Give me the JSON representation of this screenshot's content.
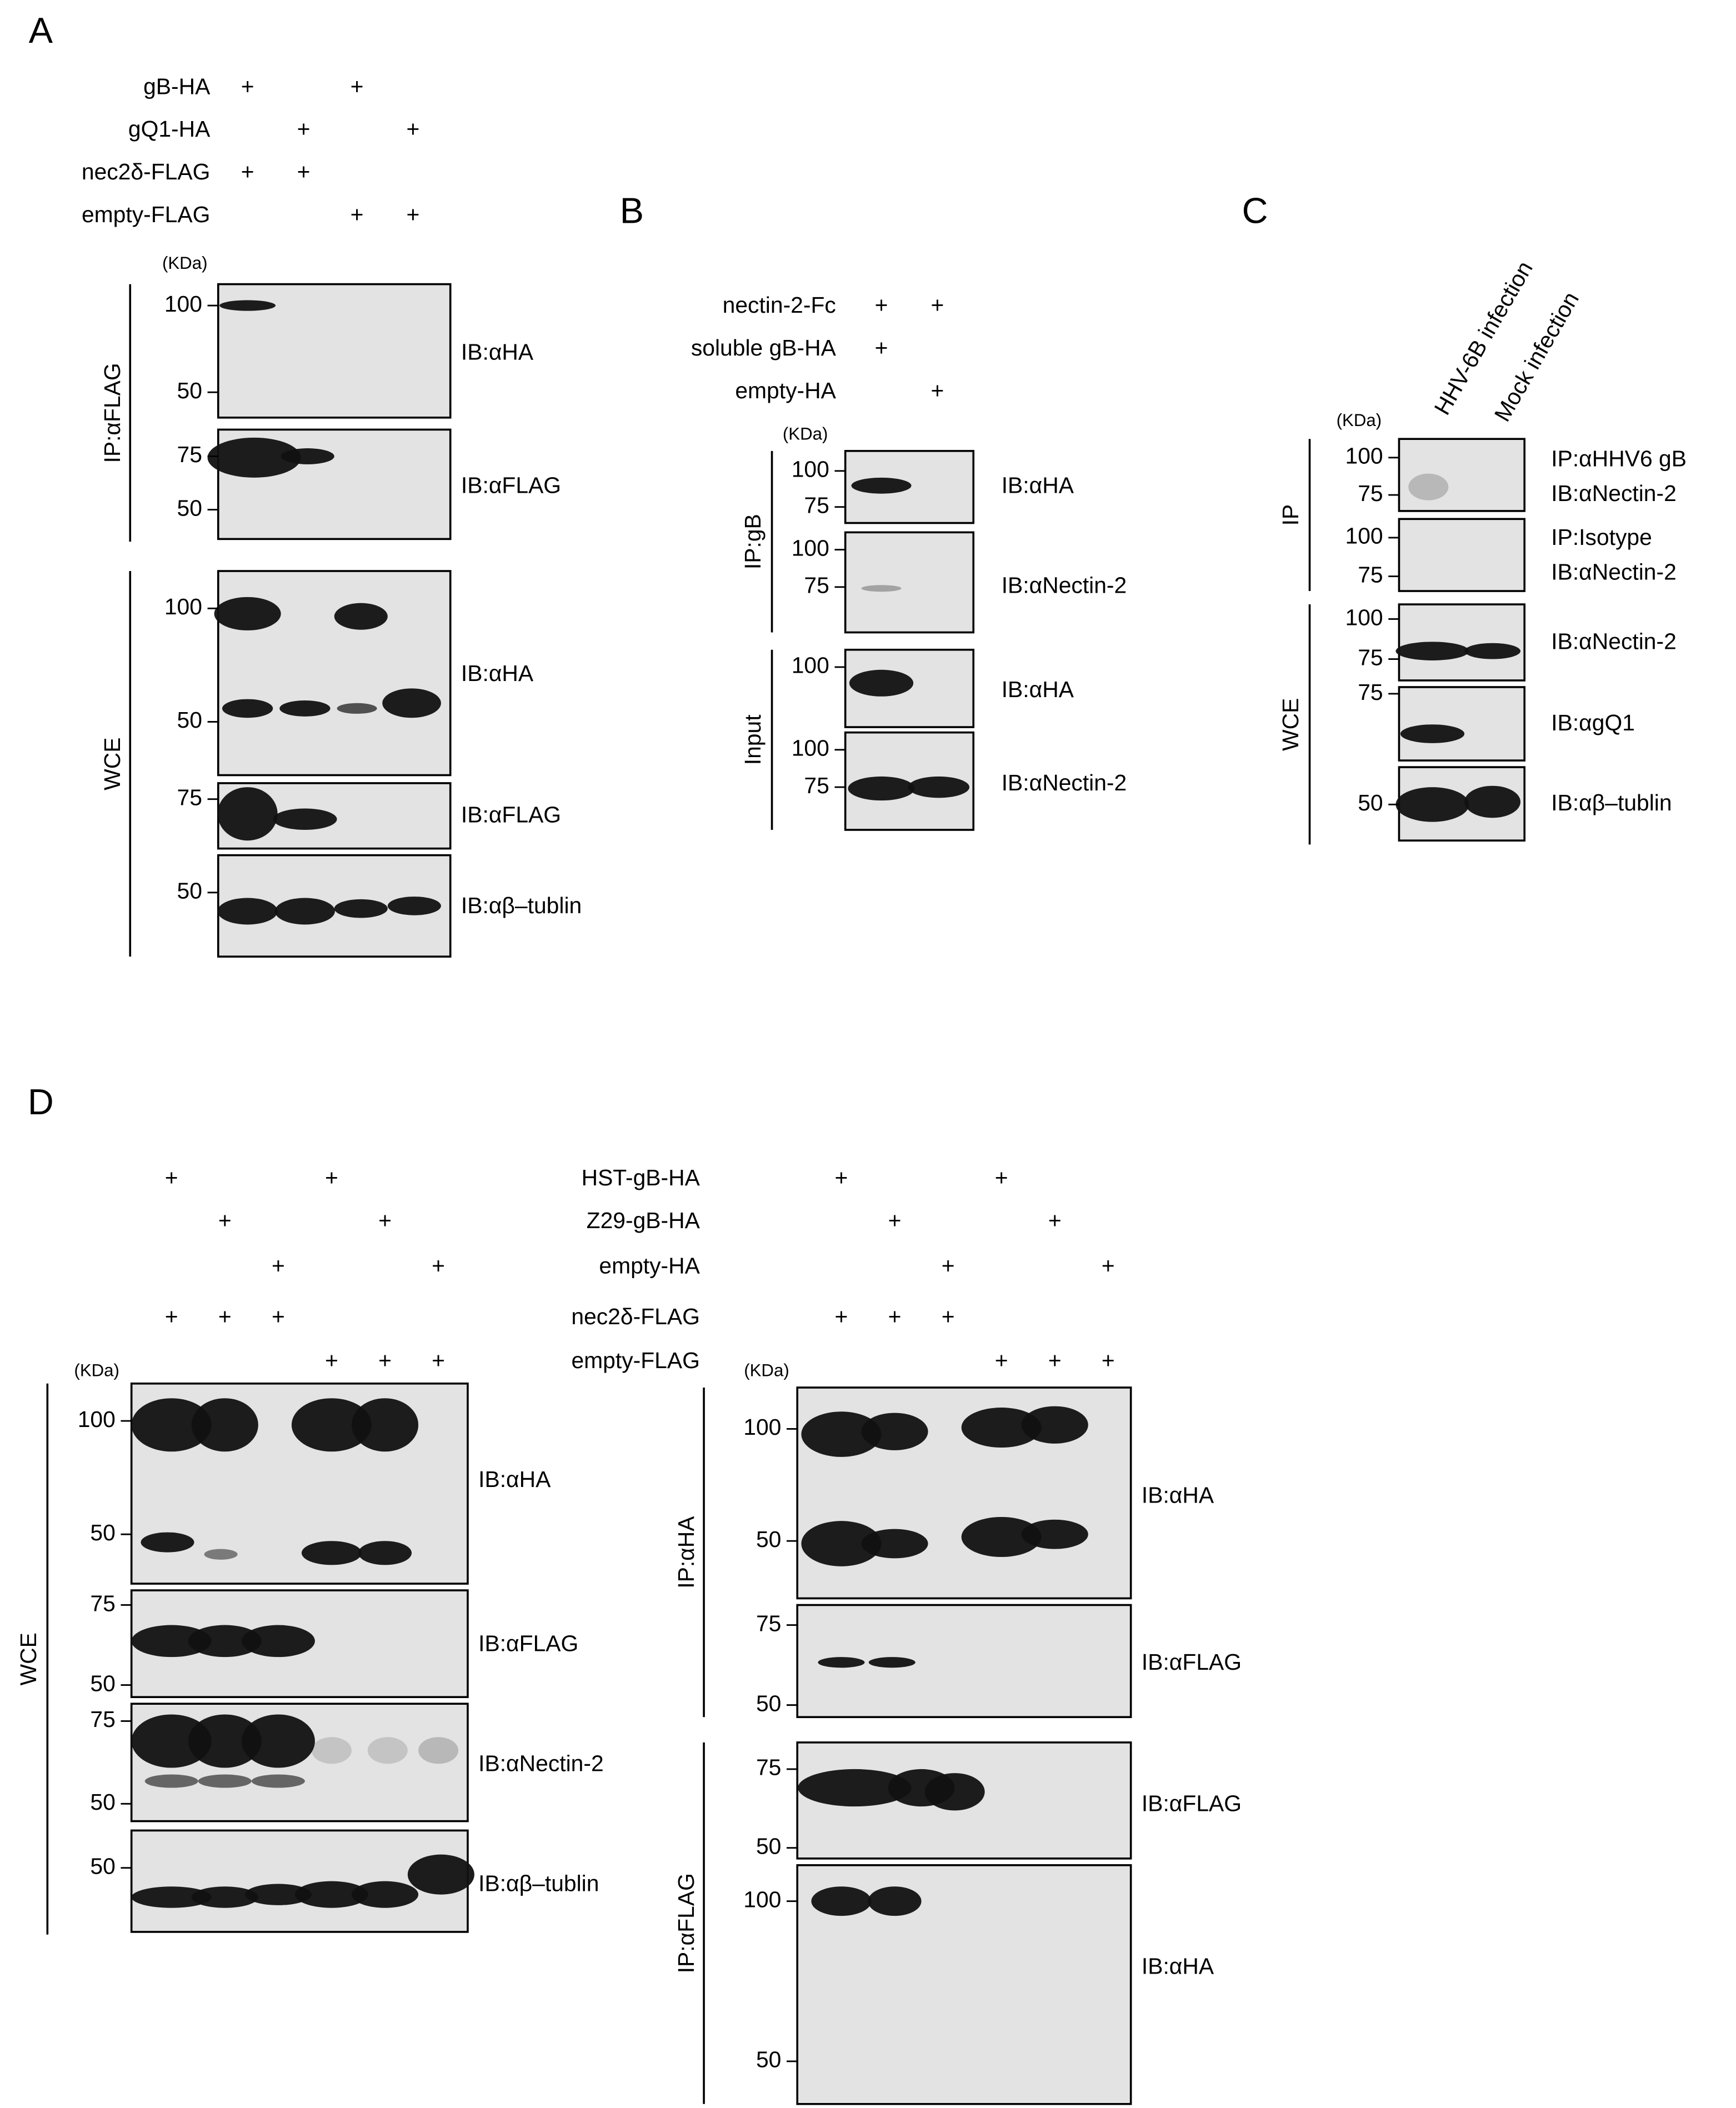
{
  "panels": [
    {
      "label": "A",
      "conditions": [
        {
          "label": "gB-HA",
          "lanes": [
            "+",
            null,
            "+",
            null
          ]
        },
        {
          "label": "gQ1-HA",
          "lanes": [
            null,
            "+",
            null,
            "+"
          ]
        },
        {
          "label": "nec2δ-FLAG",
          "lanes": [
            "+",
            "+",
            null,
            null
          ]
        },
        {
          "label": "empty-FLAG",
          "lanes": [
            null,
            null,
            "+",
            "+"
          ]
        }
      ],
      "sides": [
        {
          "kda_label": "(KDa)",
          "blots": [
            {
              "markers": [
                100,
                50
              ],
              "labels": [
                "IB:αHA"
              ]
            },
            {
              "markers": [
                75,
                50
              ],
              "labels": [
                "IB:αFLAG"
              ]
            },
            {
              "markers": [
                100,
                50
              ],
              "labels": [
                "IB:αHA"
              ]
            },
            {
              "markers": [
                75
              ],
              "labels": [
                "IB:αFLAG"
              ]
            },
            {
              "markers": [
                50
              ],
              "labels": [
                "IB:αβ–tublin"
              ]
            }
          ],
          "groups": [
            "IP:αFLAG",
            "WCE"
          ]
        }
      ]
    },
    {
      "label": "B",
      "conditions": [
        {
          "label": "nectin-2-Fc",
          "lanes": [
            "+",
            "+"
          ]
        },
        {
          "label": "soluble gB-HA",
          "lanes": [
            "+",
            null
          ]
        },
        {
          "label": "empty-HA",
          "lanes": [
            null,
            "+"
          ]
        }
      ],
      "sides": [
        {
          "kda_label": "(KDa)",
          "blots": [
            {
              "markers": [
                100,
                75
              ],
              "labels": [
                "IB:αHA"
              ]
            },
            {
              "markers": [
                100,
                75
              ],
              "labels": [
                "IB:αNectin-2"
              ]
            },
            {
              "markers": [
                100
              ],
              "labels": [
                "IB:αHA"
              ]
            },
            {
              "markers": [
                100,
                75
              ],
              "labels": [
                "IB:αNectin-2"
              ]
            }
          ],
          "groups": [
            "IP:gB",
            "Input"
          ]
        }
      ]
    },
    {
      "label": "C",
      "lane_labels": [
        "HHV-6B infection",
        "Mock infection"
      ],
      "sides": [
        {
          "kda_label": "(KDa)",
          "blots": [
            {
              "markers": [
                100,
                75
              ],
              "labels": [
                "IP:αHHV6 gB",
                "IB:αNectin-2"
              ]
            },
            {
              "markers": [
                100,
                75
              ],
              "labels": [
                "IP:Isotype",
                "IB:αNectin-2"
              ]
            },
            {
              "markers": [
                100,
                75
              ],
              "labels": [
                "IB:αNectin-2"
              ]
            },
            {
              "markers": [
                75
              ],
              "labels": [
                "IB:αgQ1"
              ]
            },
            {
              "markers": [
                50
              ],
              "labels": [
                "IB:αβ–tublin"
              ]
            }
          ],
          "groups": [
            "IP",
            "WCE"
          ]
        }
      ]
    },
    {
      "label": "D",
      "conditions": [
        {
          "label": "HST-gB-HA",
          "lanes": [
            "+",
            null,
            null,
            "+",
            null,
            null
          ]
        },
        {
          "label": "Z29-gB-HA",
          "lanes": [
            null,
            "+",
            null,
            null,
            "+",
            null
          ]
        },
        {
          "label": "empty-HA",
          "lanes": [
            null,
            null,
            "+",
            null,
            null,
            "+"
          ]
        },
        {
          "label": "nec2δ-FLAG",
          "lanes": [
            "+",
            "+",
            "+",
            null,
            null,
            null
          ]
        },
        {
          "label": "empty-FLAG",
          "lanes": [
            null,
            null,
            null,
            "+",
            "+",
            "+"
          ]
        }
      ],
      "sides": [
        {
          "kda_label": "(KDa)",
          "blots": [
            {
              "markers": [
                100,
                50
              ],
              "labels": [
                "IB:αHA"
              ]
            },
            {
              "markers": [
                75,
                50
              ],
              "labels": [
                "IB:αFLAG"
              ]
            },
            {
              "markers": [
                75,
                50
              ],
              "labels": [
                "IB:αNectin-2"
              ]
            },
            {
              "markers": [
                50
              ],
              "labels": [
                "IB:αβ–tublin"
              ]
            }
          ],
          "groups": [
            "WCE"
          ]
        },
        {
          "kda_label": "(KDa)",
          "blots": [
            {
              "markers": [
                100,
                50
              ],
              "labels": [
                "IB:αHA"
              ]
            },
            {
              "markers": [
                75,
                50
              ],
              "labels": [
                "IB:αFLAG"
              ]
            },
            {
              "markers": [
                75,
                50
              ],
              "labels": [
                "IB:αFLAG"
              ]
            },
            {
              "markers": [
                100,
                50
              ],
              "labels": [
                "IB:αHA"
              ]
            }
          ],
          "groups": [
            "IP:αHA",
            "IP:αFLAG"
          ]
        }
      ]
    }
  ]
}
